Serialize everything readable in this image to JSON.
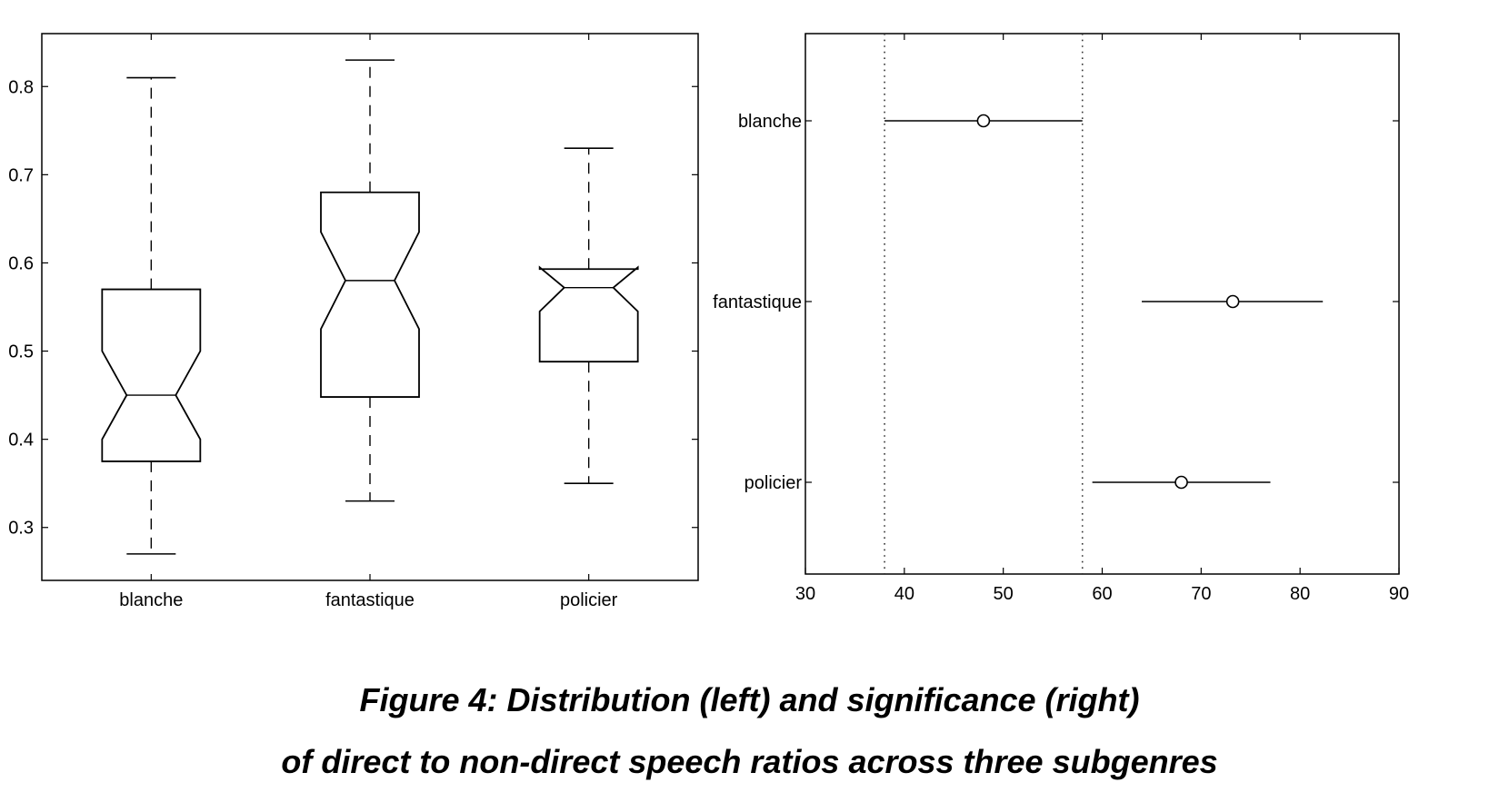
{
  "chart_data": [
    {
      "type": "boxplot",
      "notched": true,
      "categories": [
        "blanche",
        "fantastique",
        "policier"
      ],
      "ylim": [
        0.24,
        0.86
      ],
      "yticks": [
        0.3,
        0.4,
        0.5,
        0.6,
        0.7,
        0.8
      ],
      "ytick_labels": [
        "0.3",
        "0.4",
        "0.5",
        "0.6",
        "0.7",
        "0.8"
      ],
      "boxes": [
        {
          "name": "blanche",
          "whisker_low": 0.27,
          "q1": 0.375,
          "notch_low": 0.4,
          "median": 0.45,
          "notch_high": 0.5,
          "q3": 0.57,
          "whisker_high": 0.81
        },
        {
          "name": "fantastique",
          "whisker_low": 0.33,
          "q1": 0.448,
          "notch_low": 0.525,
          "median": 0.58,
          "notch_high": 0.635,
          "q3": 0.68,
          "whisker_high": 0.83
        },
        {
          "name": "policier",
          "whisker_low": 0.35,
          "q1": 0.488,
          "notch_low": 0.545,
          "median": 0.572,
          "notch_high": 0.595,
          "q3": 0.593,
          "whisker_high": 0.73
        }
      ],
      "grid": false
    },
    {
      "type": "interval",
      "categories": [
        "blanche",
        "fantastique",
        "policier"
      ],
      "xlim": [
        30,
        90
      ],
      "xticks": [
        30,
        40,
        50,
        60,
        70,
        80,
        90
      ],
      "xtick_labels": [
        "30",
        "40",
        "50",
        "60",
        "70",
        "80",
        "90"
      ],
      "intervals": [
        {
          "name": "blanche",
          "low": 38,
          "mean": 48,
          "high": 58
        },
        {
          "name": "fantastique",
          "low": 64,
          "mean": 73.2,
          "high": 82.3
        },
        {
          "name": "policier",
          "low": 59,
          "mean": 68,
          "high": 77
        }
      ],
      "reference_lines": [
        38,
        58
      ],
      "grid": false
    }
  ],
  "caption": {
    "line1": "Figure 4: Distribution (left) and significance (right)",
    "line2": "of direct to non-direct speech ratios across three subgenres"
  }
}
